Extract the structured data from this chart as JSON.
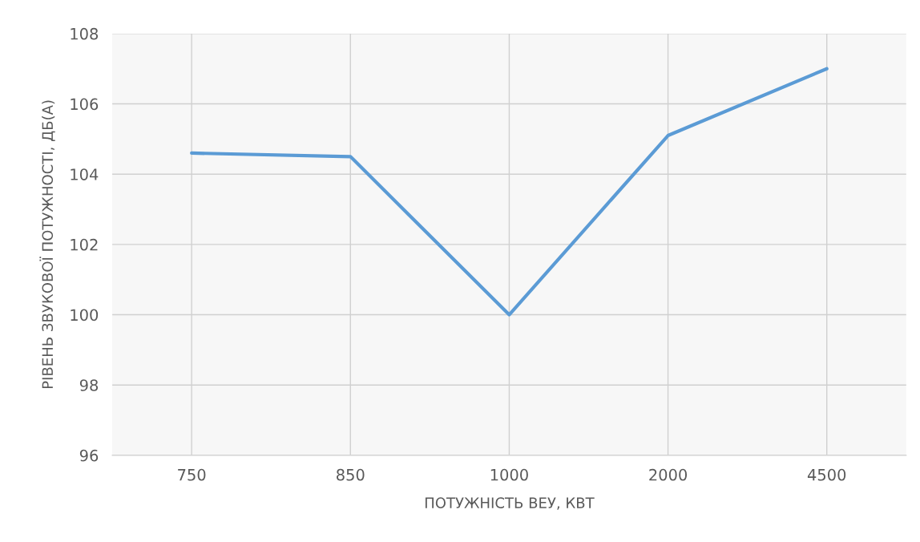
{
  "chart_data": {
    "type": "line",
    "xlabel": "ПОТУЖНІСТЬ ВЕУ, КВТ",
    "ylabel": "РІВЕНЬ ЗВУКОВОЇ ПОТУЖНОСТІ, ДБ(А)",
    "categories": [
      "750",
      "850",
      "1000",
      "2000",
      "4500"
    ],
    "series": [
      {
        "color": "#5b9bd5",
        "values": [
          104.6,
          104.5,
          100.0,
          105.1,
          107.0
        ]
      }
    ],
    "ylim": [
      96,
      108
    ],
    "yticks": [
      96,
      98,
      100,
      102,
      104,
      106,
      108
    ],
    "grid": true
  }
}
